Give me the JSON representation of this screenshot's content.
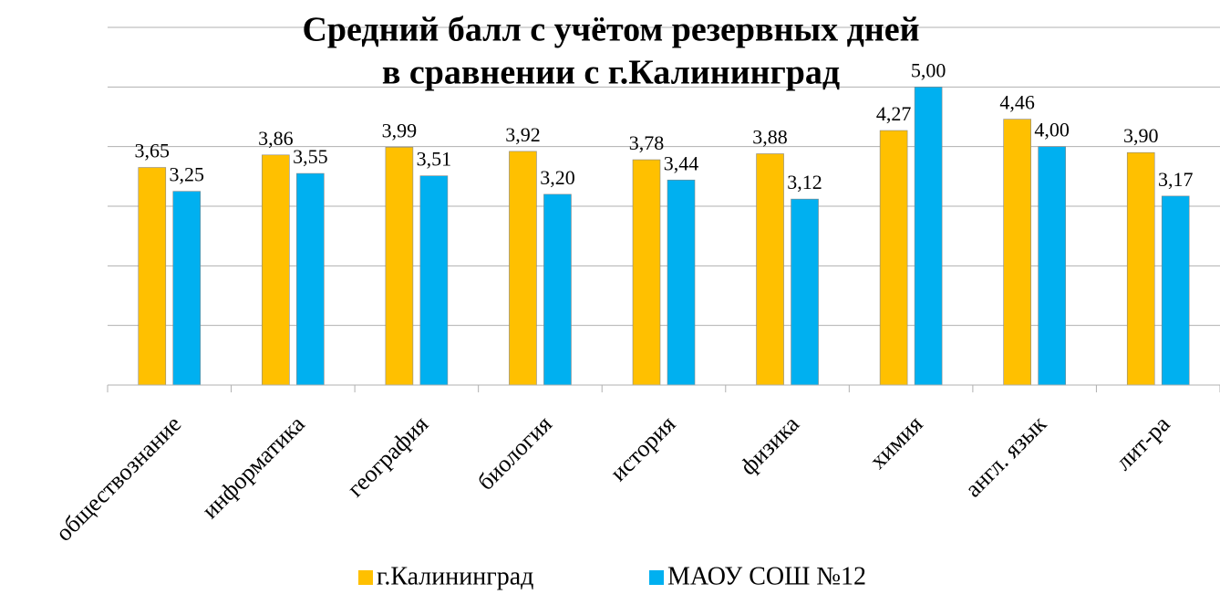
{
  "chart_data": {
    "type": "bar",
    "title": [
      "Средний балл с учётом резервных дней",
      "в сравнении с г.Калининград"
    ],
    "categories": [
      "обществознание",
      "информатика",
      "география",
      "биология",
      "история",
      "физика",
      "химия",
      "англ. язык",
      "лит-ра"
    ],
    "series": [
      {
        "name": "г.Калининград",
        "color": "#FFC000",
        "values": [
          3.65,
          3.86,
          3.99,
          3.92,
          3.78,
          3.88,
          4.27,
          4.46,
          3.9
        ],
        "value_labels": [
          "3,65",
          "3,86",
          "3,99",
          "3,92",
          "3,78",
          "3,88",
          "4,27",
          "4,46",
          "3,90"
        ]
      },
      {
        "name": "МАОУ СОШ №12",
        "color": "#00B0F0",
        "values": [
          3.25,
          3.55,
          3.51,
          3.2,
          3.44,
          3.12,
          5.0,
          4.0,
          3.17
        ],
        "value_labels": [
          "3,25",
          "3,55",
          "3,51",
          "3,20",
          "3,44",
          "3,12",
          "5,00",
          "4,00",
          "3,17"
        ]
      }
    ],
    "ylim": [
      0,
      6
    ],
    "yticks": [
      0,
      1,
      2,
      3,
      4,
      5,
      6
    ],
    "grid": true,
    "legend": "bottom"
  }
}
